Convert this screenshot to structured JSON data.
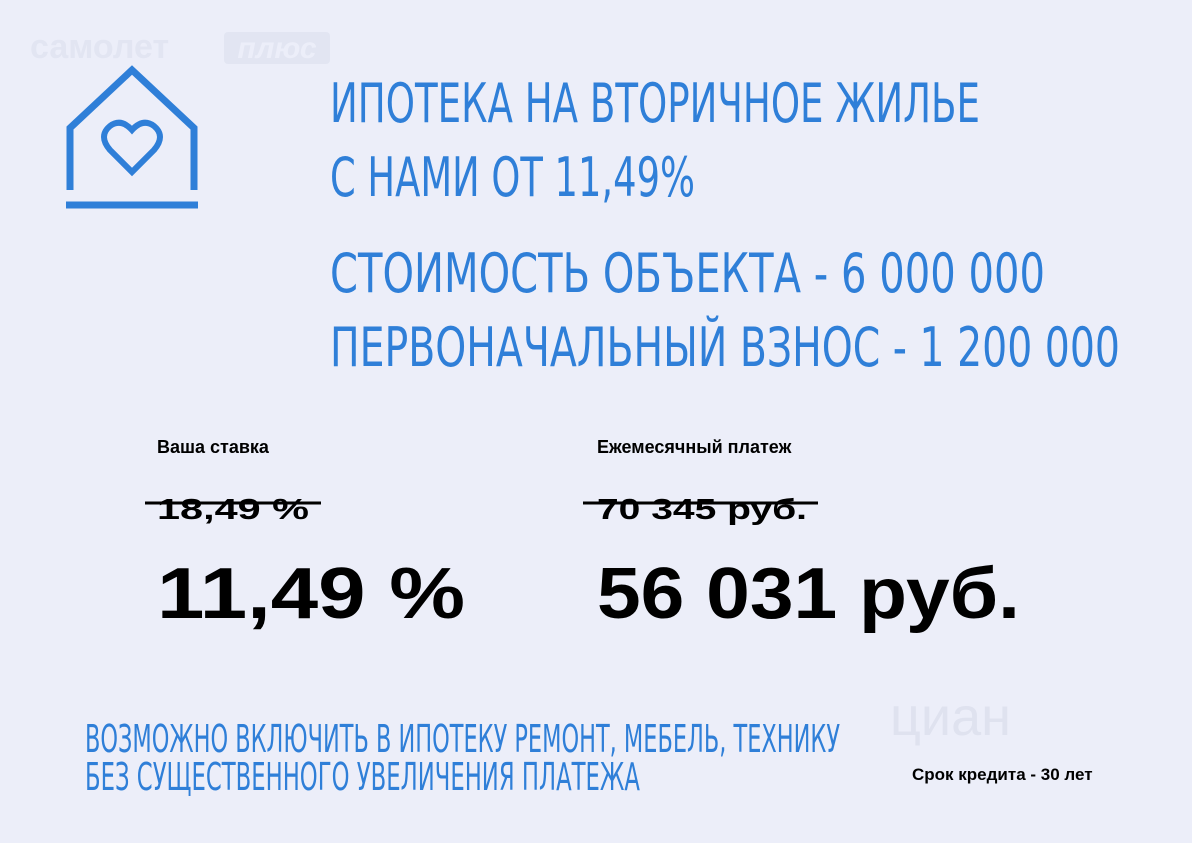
{
  "brand": {
    "name": "самолет",
    "suffix": "плюс"
  },
  "headline": {
    "lines": [
      "ИПОТЕКА НА ВТОРИЧНОЕ ЖИЛЬЕ",
      "С НАМИ ОТ 11,49%"
    ]
  },
  "details": {
    "lines": [
      "СТОИМОСТЬ ОБЪЕКТА - 6 000 000",
      "ПЕРВОНАЧАЛЬНЫЙ ВЗНОС - 1 200 000"
    ]
  },
  "rate": {
    "label": "Ваша ставка",
    "old": "18,49 %",
    "new": "11,49 %"
  },
  "payment": {
    "label": "Ежемесячный платеж",
    "old": "70 345 руб.",
    "new": "56 031 руб."
  },
  "footer": {
    "lines": [
      "ВОЗМОЖНО ВКЛЮЧИТЬ В ИПОТЕКУ РЕМОНТ, МЕБЕЛЬ, ТЕХНИКУ",
      "БЕЗ СУЩЕСТВЕННОГО УВЕЛИЧЕНИЯ ПЛАТЕЖА"
    ],
    "term": "Срок кредита - 30 лет"
  },
  "watermark": "циан"
}
